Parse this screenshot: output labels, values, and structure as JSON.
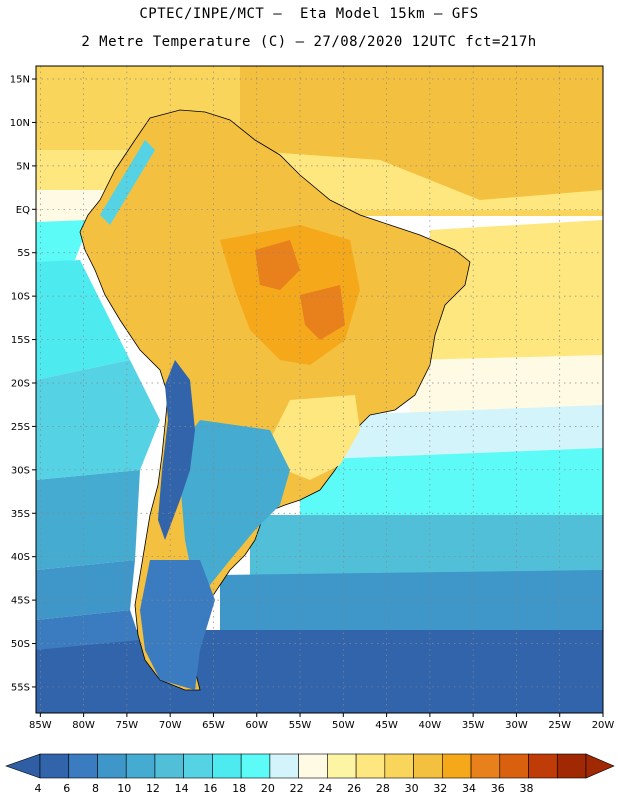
{
  "title": {
    "line1": "CPTEC/INPE/MCT –  Eta Model 15km – GFS",
    "line2": "2 Metre Temperature (C) – 27/08/2020 12UTC fct=217h"
  },
  "axes": {
    "lat_labels": [
      "15N",
      "10N",
      "5N",
      "EQ",
      "5S",
      "10S",
      "15S",
      "20S",
      "25S",
      "30S",
      "35S",
      "40S",
      "45S",
      "50S",
      "55S"
    ],
    "lon_labels": [
      "85W",
      "80W",
      "75W",
      "70W",
      "65W",
      "60W",
      "55W",
      "50W",
      "45W",
      "40W",
      "35W",
      "30W",
      "25W",
      "20W"
    ],
    "lat_range": [
      16.5,
      -58
    ],
    "lon_range": [
      -85.5,
      -20
    ]
  },
  "colorbar": {
    "values": [
      4,
      6,
      8,
      10,
      12,
      14,
      16,
      18,
      20,
      22,
      24,
      26,
      28,
      30,
      32,
      34,
      36,
      38
    ],
    "colors": [
      "#3164aa",
      "#3b7bbf",
      "#3e96c9",
      "#45abd0",
      "#52bfd9",
      "#55d2e3",
      "#4deaf0",
      "#5cfbf8",
      "#d4f4fb",
      "#fefae4",
      "#fef5a4",
      "#fee77e",
      "#f9d55b",
      "#f4c040",
      "#f4a81a",
      "#e8801c",
      "#d9600e",
      "#bf3c08",
      "#a02803"
    ],
    "below_color": "#2f5ea4",
    "above_color": "#a02803"
  },
  "chart_data": {
    "type": "heatmap",
    "variable": "2 Metre Temperature",
    "units": "C",
    "model": "Eta Model 15km - GFS",
    "init": "27/08/2020 12UTC",
    "forecast_hour": 217,
    "levels": [
      4,
      6,
      8,
      10,
      12,
      14,
      16,
      18,
      20,
      22,
      24,
      26,
      28,
      30,
      32,
      34,
      36,
      38
    ]
  }
}
